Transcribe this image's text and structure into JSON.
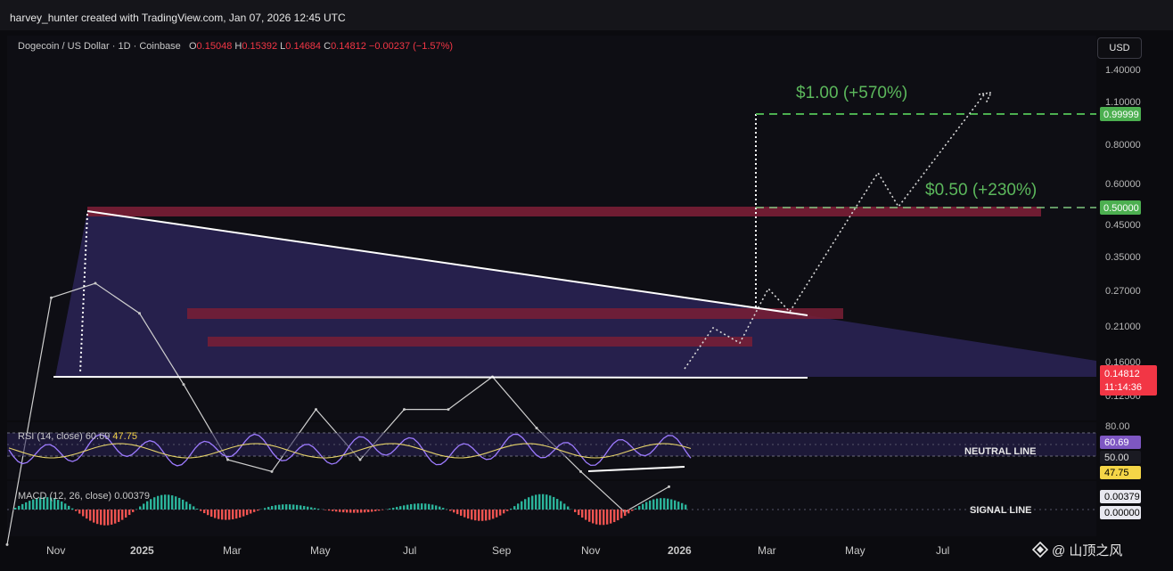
{
  "credit": "harvey_hunter created with TradingView.com, Jan 07, 2026 12:45 UTC",
  "symbol": "Dogecoin / US Dollar · 1D · Coinbase",
  "ohlc": {
    "o_label": "O",
    "o": "0.15048",
    "h_label": "H",
    "h": "0.15392",
    "l_label": "L",
    "l": "0.14684",
    "c_label": "C",
    "c": "0.14812",
    "change": "−0.00237 (−1.57%)"
  },
  "currency_button": "USD",
  "colors": {
    "background": "#0b0b0f",
    "triangle_fill": "#2a2356",
    "resistance_zone": "#7a1e35",
    "target_green": "#4caf50",
    "price_label_red": "#f23645",
    "rsi_line": "#9d7bff",
    "rsi_ma": "#e6d36a",
    "macd_up": "#2bb39a",
    "macd_down": "#ef5350"
  },
  "annotations": {
    "target_1": "$1.00 (+570%)",
    "target_2": "$0.50 (+230%)",
    "neutral_line": "NEUTRAL LINE",
    "signal_line": "SIGNAL LINE"
  },
  "price_axis": {
    "ticks": [
      "1.40000",
      "1.10000",
      "0.80000",
      "0.60000",
      "0.45000",
      "0.35000",
      "0.27000",
      "0.21000",
      "0.16000",
      "0.12500"
    ],
    "badge_target_1": "0.99999",
    "badge_target_2": "0.50000",
    "badge_last": "0.14812",
    "badge_countdown": "11:14:36"
  },
  "rsi": {
    "label": "RSI (14, close)",
    "value": "60.69",
    "ma_value": "47.75",
    "axis": [
      "80.00",
      "50.00"
    ],
    "badge_rsi": "60.69",
    "badge_mid": "50.00",
    "badge_ma": "47.75"
  },
  "macd": {
    "label": "MACD (12, 26, close)",
    "value": "0.00379",
    "badge_macd": "0.00379",
    "badge_zero": "0.00000"
  },
  "time_axis": [
    "Nov",
    "2025",
    "Mar",
    "May",
    "Jul",
    "Sep",
    "Nov",
    "2026",
    "Mar",
    "May",
    "Jul"
  ],
  "watermark": "@ 山顶之风",
  "chart_data": {
    "type": "line",
    "title": "Dogecoin / US Dollar · 1D · Coinbase",
    "log_scale": true,
    "ylim": [
      0.11,
      1.5
    ],
    "x": [
      "2024-10",
      "2024-11",
      "2024-12",
      "2025-01",
      "2025-02",
      "2025-03",
      "2025-04",
      "2025-05",
      "2025-06",
      "2025-07",
      "2025-08",
      "2025-09",
      "2025-10",
      "2025-11",
      "2025-12",
      "2026-01"
    ],
    "series": [
      {
        "name": "DOGE/USD",
        "values": [
          0.11,
          0.39,
          0.42,
          0.36,
          0.25,
          0.17,
          0.16,
          0.22,
          0.17,
          0.22,
          0.22,
          0.26,
          0.2,
          0.16,
          0.13,
          0.148
        ]
      }
    ],
    "levels": {
      "triangle_top_start": 0.48,
      "triangle_top_end": 0.22,
      "triangle_base": 0.15,
      "zone_high": 0.49,
      "zone_mid": 0.23,
      "zone_low": 0.19,
      "target_1": 1.0,
      "target_2": 0.5
    },
    "projection": {
      "x": [
        "2026-01",
        "2026-02",
        "2026-03",
        "2026-04",
        "2026-05",
        "2026-06",
        "2026-07"
      ],
      "values": [
        0.148,
        0.21,
        0.27,
        0.23,
        0.5,
        0.62,
        1.15
      ]
    }
  }
}
